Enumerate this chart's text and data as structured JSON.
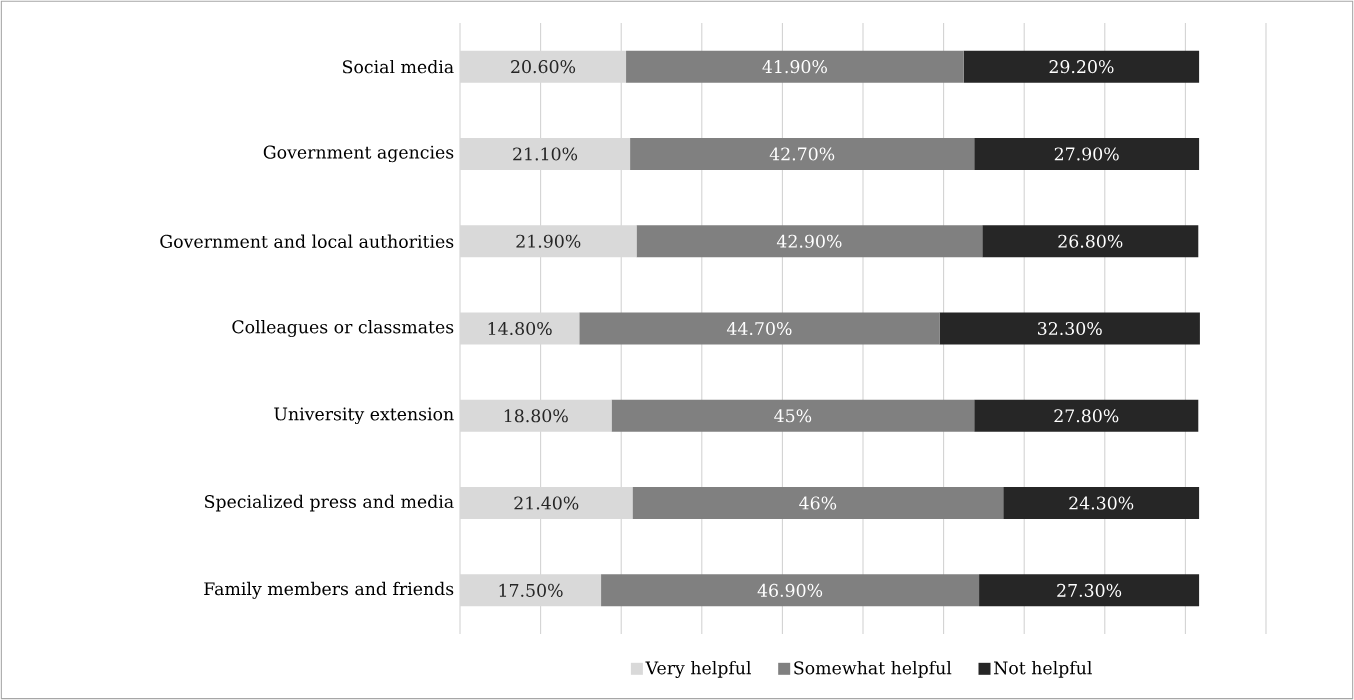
{
  "chart_data": {
    "type": "bar",
    "orientation": "horizontal",
    "stacked": true,
    "categories": [
      "Social media",
      "Government agencies",
      "Government and local authorities",
      "Colleagues or classmates",
      "University extension",
      "Specialized press and media",
      "Family members and friends"
    ],
    "series": [
      {
        "name": "Very helpful",
        "color": "#d9d9d9",
        "values": [
          20.6,
          21.1,
          21.9,
          14.8,
          18.8,
          21.4,
          17.5
        ],
        "value_labels": [
          "20.60%",
          "21.10%",
          "21.90%",
          "14.80%",
          "18.80%",
          "21.40%",
          "17.50%"
        ]
      },
      {
        "name": "Somewhat helpful",
        "color": "#808080",
        "values": [
          41.9,
          42.7,
          42.9,
          44.7,
          45,
          46,
          46.9
        ],
        "value_labels": [
          "41.90%",
          "42.70%",
          "42.90%",
          "44.70%",
          "45%",
          "46%",
          "46.90%"
        ]
      },
      {
        "name": "Not helpful",
        "color": "#262626",
        "values": [
          29.2,
          27.9,
          26.8,
          32.3,
          27.8,
          24.3,
          27.3
        ],
        "value_labels": [
          "29.20%",
          "27.90%",
          "26.80%",
          "32.30%",
          "27.80%",
          "24.30%",
          "27.30%"
        ]
      }
    ],
    "xlim": [
      0,
      100
    ],
    "xticks": [
      {
        "value": 0,
        "label": null
      },
      {
        "value": 10,
        "label": null
      },
      {
        "value": 20,
        "label": null
      },
      {
        "value": 30,
        "label": null
      },
      {
        "value": 40,
        "label": null
      },
      {
        "value": 50,
        "label": null
      },
      {
        "value": 60,
        "label": null
      },
      {
        "value": 70,
        "label": null
      },
      {
        "value": 80,
        "label": null
      },
      {
        "value": 90,
        "label": null
      },
      {
        "value": 100,
        "label": null
      }
    ],
    "grid": "x",
    "legend": "bottom",
    "tick_labels": "y"
  }
}
